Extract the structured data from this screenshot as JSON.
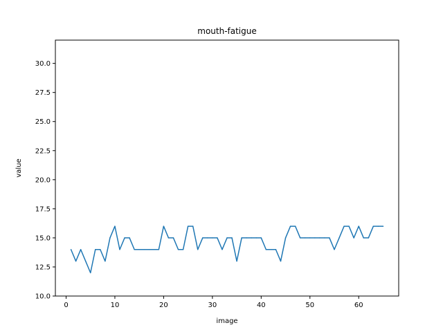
{
  "chart_data": {
    "type": "line",
    "title": "mouth-fatigue",
    "xlabel": "image",
    "ylabel": "value",
    "xlim": [
      -2.2,
      68.2
    ],
    "ylim": [
      10.0,
      32.0
    ],
    "xticks": [
      0,
      10,
      20,
      30,
      40,
      50,
      60
    ],
    "yticks": [
      10.0,
      12.5,
      15.0,
      17.5,
      20.0,
      22.5,
      25.0,
      27.5,
      30.0
    ],
    "xtick_labels": [
      "0",
      "10",
      "20",
      "30",
      "40",
      "50",
      "60"
    ],
    "ytick_labels": [
      "10.0",
      "12.5",
      "15.0",
      "17.5",
      "20.0",
      "22.5",
      "25.0",
      "27.5",
      "30.0"
    ],
    "grid": false,
    "line_color": "#1f77b4",
    "series": [
      {
        "x": [
          1,
          2,
          3,
          4,
          5,
          6,
          7,
          8,
          9,
          10,
          11,
          12,
          13,
          14,
          15,
          16,
          17,
          18,
          19,
          20,
          21,
          22,
          23,
          24,
          25,
          26,
          27,
          28,
          29,
          30,
          31,
          32,
          33,
          34,
          35,
          36,
          37,
          38,
          39,
          40,
          41,
          42,
          43,
          44,
          45,
          46,
          47,
          48,
          49,
          50,
          51,
          52,
          53,
          54,
          55,
          56,
          57,
          58,
          59,
          60,
          61,
          62,
          63,
          64,
          65
        ],
        "values": [
          14,
          13,
          14,
          13,
          12,
          14,
          14,
          13,
          15,
          16,
          14,
          15,
          15,
          14,
          14,
          14,
          14,
          14,
          14,
          16,
          15,
          15,
          14,
          14,
          16,
          16,
          14,
          15,
          15,
          15,
          15,
          14,
          15,
          15,
          13,
          15,
          15,
          15,
          15,
          15,
          14,
          14,
          14,
          13,
          15,
          16,
          16,
          15,
          15,
          15,
          15,
          15,
          15,
          15,
          14,
          15,
          16,
          16,
          15,
          16,
          15,
          15,
          16,
          16,
          16
        ]
      }
    ]
  }
}
